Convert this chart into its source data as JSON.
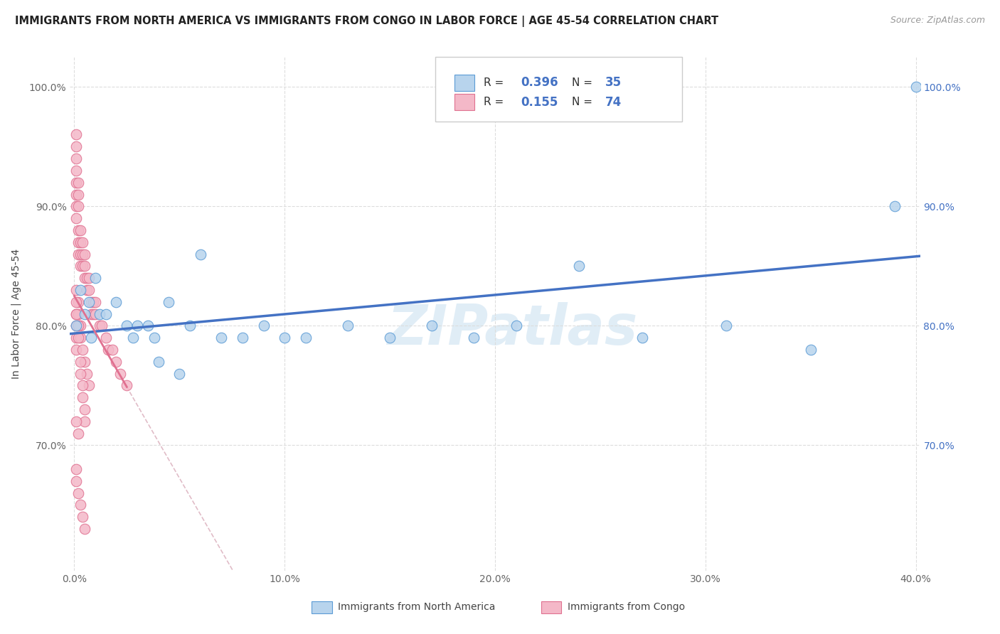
{
  "title": "IMMIGRANTS FROM NORTH AMERICA VS IMMIGRANTS FROM CONGO IN LABOR FORCE | AGE 45-54 CORRELATION CHART",
  "source": "Source: ZipAtlas.com",
  "ylabel": "In Labor Force | Age 45-54",
  "xlim": [
    -0.002,
    0.402
  ],
  "ylim": [
    0.595,
    1.025
  ],
  "xtick_labels": [
    "0.0%",
    "10.0%",
    "20.0%",
    "30.0%",
    "40.0%"
  ],
  "xtick_vals": [
    0.0,
    0.1,
    0.2,
    0.3,
    0.4
  ],
  "ytick_labels": [
    "70.0%",
    "80.0%",
    "90.0%",
    "100.0%"
  ],
  "ytick_vals": [
    0.7,
    0.8,
    0.9,
    1.0
  ],
  "ytick_right_labels": [
    "100.0%",
    "90.0%",
    "80.0%",
    "70.0%"
  ],
  "blue_fill": "#b8d4ed",
  "blue_edge": "#5b9bd5",
  "pink_fill": "#f4b8c8",
  "pink_edge": "#e07090",
  "trend_blue_color": "#4472c4",
  "trend_pink_color": "#e07090",
  "dash_color": "#d4a0b0",
  "R_blue": 0.396,
  "N_blue": 35,
  "R_pink": 0.155,
  "N_pink": 74,
  "legend_label_blue": "Immigrants from North America",
  "legend_label_pink": "Immigrants from Congo",
  "watermark": "ZIPatlas",
  "blue_x": [
    0.001,
    0.003,
    0.005,
    0.007,
    0.008,
    0.01,
    0.012,
    0.015,
    0.02,
    0.025,
    0.028,
    0.03,
    0.035,
    0.038,
    0.04,
    0.045,
    0.05,
    0.055,
    0.06,
    0.07,
    0.08,
    0.09,
    0.1,
    0.11,
    0.13,
    0.15,
    0.17,
    0.19,
    0.21,
    0.24,
    0.27,
    0.31,
    0.35,
    0.39,
    0.4
  ],
  "blue_y": [
    0.8,
    0.83,
    0.81,
    0.82,
    0.79,
    0.84,
    0.81,
    0.81,
    0.82,
    0.8,
    0.79,
    0.8,
    0.8,
    0.79,
    0.77,
    0.82,
    0.76,
    0.8,
    0.86,
    0.79,
    0.79,
    0.8,
    0.79,
    0.79,
    0.8,
    0.79,
    0.8,
    0.79,
    0.8,
    0.85,
    0.79,
    0.8,
    0.78,
    0.9,
    1.0
  ],
  "pink_x": [
    0.001,
    0.001,
    0.001,
    0.001,
    0.001,
    0.001,
    0.001,
    0.001,
    0.002,
    0.002,
    0.002,
    0.002,
    0.002,
    0.002,
    0.003,
    0.003,
    0.003,
    0.003,
    0.004,
    0.004,
    0.004,
    0.005,
    0.005,
    0.005,
    0.006,
    0.006,
    0.007,
    0.007,
    0.008,
    0.008,
    0.009,
    0.009,
    0.01,
    0.01,
    0.012,
    0.013,
    0.015,
    0.016,
    0.018,
    0.02,
    0.022,
    0.025,
    0.001,
    0.001,
    0.001,
    0.001,
    0.002,
    0.002,
    0.002,
    0.003,
    0.003,
    0.004,
    0.005,
    0.006,
    0.007,
    0.001,
    0.001,
    0.001,
    0.002,
    0.002,
    0.003,
    0.003,
    0.004,
    0.004,
    0.005,
    0.005,
    0.001,
    0.002,
    0.001,
    0.001,
    0.002,
    0.003,
    0.004,
    0.005
  ],
  "pink_y": [
    0.95,
    0.93,
    0.96,
    0.94,
    0.92,
    0.91,
    0.9,
    0.89,
    0.92,
    0.91,
    0.9,
    0.88,
    0.87,
    0.86,
    0.88,
    0.87,
    0.86,
    0.85,
    0.87,
    0.86,
    0.85,
    0.86,
    0.85,
    0.84,
    0.84,
    0.83,
    0.84,
    0.83,
    0.82,
    0.81,
    0.82,
    0.81,
    0.82,
    0.81,
    0.8,
    0.8,
    0.79,
    0.78,
    0.78,
    0.77,
    0.76,
    0.75,
    0.81,
    0.8,
    0.79,
    0.78,
    0.82,
    0.81,
    0.8,
    0.8,
    0.79,
    0.78,
    0.77,
    0.76,
    0.75,
    0.83,
    0.82,
    0.81,
    0.8,
    0.79,
    0.77,
    0.76,
    0.75,
    0.74,
    0.73,
    0.72,
    0.72,
    0.71,
    0.68,
    0.67,
    0.66,
    0.65,
    0.64,
    0.63
  ]
}
